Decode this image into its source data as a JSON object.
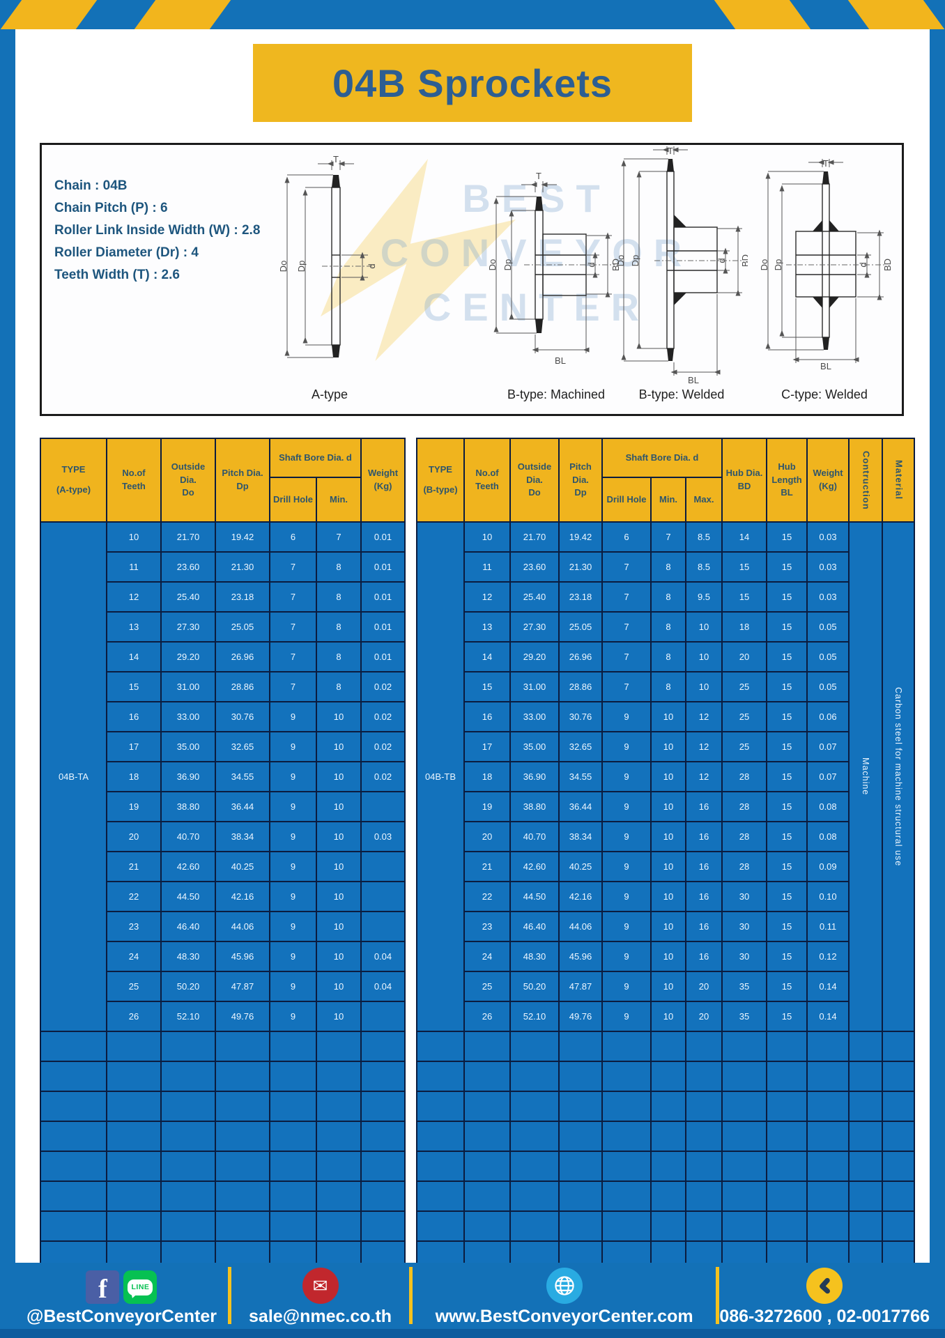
{
  "page": {
    "title": "04B Sprockets"
  },
  "specs": {
    "lines": [
      "Chain : 04B",
      "Chain Pitch (P) : 6",
      "Roller Link Inside Width (W) : 2.8",
      "Roller Diameter (Dr) : 4",
      "Teeth Width (T) : 2.6"
    ]
  },
  "watermark": {
    "lines": [
      "BEST",
      "CONVEYOR",
      "CENTER"
    ]
  },
  "diagram": {
    "types": [
      "A-type",
      "B-type: Machined",
      "B-type: Welded",
      "C-type: Welded"
    ],
    "dims": {
      "T": "T",
      "Do": "Do",
      "Dp": "Dp",
      "d": "d",
      "BD": "BD",
      "BL": "BL"
    }
  },
  "tables": {
    "left": {
      "type_header": "TYPE\n(A-type)",
      "headers": {
        "teeth": "No.of\nTeeth",
        "outside": "Outside\nDia.\nDo",
        "pitch": "Pitch Dia.\nDp",
        "shaft_bore": "Shaft Bore Dia. d",
        "drill": "Drill Hole",
        "min": "Min.",
        "weight": "Weight\n(Kg)"
      },
      "series_label": "04B-TA",
      "rows": [
        [
          "10",
          "21.70",
          "19.42",
          "6",
          "7",
          "0.01"
        ],
        [
          "11",
          "23.60",
          "21.30",
          "7",
          "8",
          "0.01"
        ],
        [
          "12",
          "25.40",
          "23.18",
          "7",
          "8",
          "0.01"
        ],
        [
          "13",
          "27.30",
          "25.05",
          "7",
          "8",
          "0.01"
        ],
        [
          "14",
          "29.20",
          "26.96",
          "7",
          "8",
          "0.01"
        ],
        [
          "15",
          "31.00",
          "28.86",
          "7",
          "8",
          "0.02"
        ],
        [
          "16",
          "33.00",
          "30.76",
          "9",
          "10",
          "0.02"
        ],
        [
          "17",
          "35.00",
          "32.65",
          "9",
          "10",
          "0.02"
        ],
        [
          "18",
          "36.90",
          "34.55",
          "9",
          "10",
          "0.02"
        ],
        [
          "19",
          "38.80",
          "36.44",
          "9",
          "10",
          ""
        ],
        [
          "20",
          "40.70",
          "38.34",
          "9",
          "10",
          "0.03"
        ],
        [
          "21",
          "42.60",
          "40.25",
          "9",
          "10",
          ""
        ],
        [
          "22",
          "44.50",
          "42.16",
          "9",
          "10",
          ""
        ],
        [
          "23",
          "46.40",
          "44.06",
          "9",
          "10",
          ""
        ],
        [
          "24",
          "48.30",
          "45.96",
          "9",
          "10",
          "0.04"
        ],
        [
          "25",
          "50.20",
          "47.87",
          "9",
          "10",
          "0.04"
        ],
        [
          "26",
          "52.10",
          "49.76",
          "9",
          "10",
          ""
        ]
      ],
      "empty_row_count": 8
    },
    "right": {
      "type_header": "TYPE\n(B-type)",
      "headers": {
        "teeth": "No.of\nTeeth",
        "outside": "Outside\nDia.\nDo",
        "pitch": "Pitch Dia.\nDp",
        "shaft_bore": "Shaft Bore Dia. d",
        "drill": "Drill Hole",
        "min": "Min.",
        "max": "Max.",
        "hub_dia": "Hub Dia.\nBD",
        "hub_length": "Hub\nLength\nBL",
        "weight": "Weight\n(Kg)",
        "construction": "Contruction",
        "material": "Material"
      },
      "series_label": "04B-TB",
      "construction_value": "Machine",
      "material_value": "Carbon steel for machine structural use",
      "rows": [
        [
          "10",
          "21.70",
          "19.42",
          "6",
          "7",
          "8.5",
          "14",
          "15",
          "0.03"
        ],
        [
          "11",
          "23.60",
          "21.30",
          "7",
          "8",
          "8.5",
          "15",
          "15",
          "0.03"
        ],
        [
          "12",
          "25.40",
          "23.18",
          "7",
          "8",
          "9.5",
          "15",
          "15",
          "0.03"
        ],
        [
          "13",
          "27.30",
          "25.05",
          "7",
          "8",
          "10",
          "18",
          "15",
          "0.05"
        ],
        [
          "14",
          "29.20",
          "26.96",
          "7",
          "8",
          "10",
          "20",
          "15",
          "0.05"
        ],
        [
          "15",
          "31.00",
          "28.86",
          "7",
          "8",
          "10",
          "25",
          "15",
          "0.05"
        ],
        [
          "16",
          "33.00",
          "30.76",
          "9",
          "10",
          "12",
          "25",
          "15",
          "0.06"
        ],
        [
          "17",
          "35.00",
          "32.65",
          "9",
          "10",
          "12",
          "25",
          "15",
          "0.07"
        ],
        [
          "18",
          "36.90",
          "34.55",
          "9",
          "10",
          "12",
          "28",
          "15",
          "0.07"
        ],
        [
          "19",
          "38.80",
          "36.44",
          "9",
          "10",
          "16",
          "28",
          "15",
          "0.08"
        ],
        [
          "20",
          "40.70",
          "38.34",
          "9",
          "10",
          "16",
          "28",
          "15",
          "0.08"
        ],
        [
          "21",
          "42.60",
          "40.25",
          "9",
          "10",
          "16",
          "28",
          "15",
          "0.09"
        ],
        [
          "22",
          "44.50",
          "42.16",
          "9",
          "10",
          "16",
          "30",
          "15",
          "0.10"
        ],
        [
          "23",
          "46.40",
          "44.06",
          "9",
          "10",
          "16",
          "30",
          "15",
          "0.11"
        ],
        [
          "24",
          "48.30",
          "45.96",
          "9",
          "10",
          "16",
          "30",
          "15",
          "0.12"
        ],
        [
          "25",
          "50.20",
          "47.87",
          "9",
          "10",
          "20",
          "35",
          "15",
          "0.14"
        ],
        [
          "26",
          "52.10",
          "49.76",
          "9",
          "10",
          "20",
          "35",
          "15",
          "0.14"
        ]
      ],
      "empty_row_count": 8
    }
  },
  "footer": {
    "facebook_letter": "f",
    "line_badge": "LINE",
    "items": [
      {
        "text": "@BestConveyorCenter"
      },
      {
        "text": "sale@nmec.co.th"
      },
      {
        "text": "www.BestConveyorCenter.com"
      },
      {
        "text": "086-3272600 , 02-0017766"
      }
    ]
  },
  "colors": {
    "frame_blue": "#1371B7",
    "stripe_yellow": "#F2B51D",
    "title_yellow": "#EFB71F",
    "title_text": "#2D5E92",
    "specs_text": "#1E567E",
    "header_yellow": "#F0B41E",
    "header_text": "#2E556C",
    "cell_blue": "#1372BC",
    "grid_navy": "#0B1C3F",
    "cell_text": "#ECF6FF",
    "footer_dark_strip": "#0D5C9E",
    "facebook_blue": "#4A5FA5",
    "line_green": "#06C152",
    "email_red": "#C1272D",
    "globe_blue": "#29ABE2",
    "phone_yellow": "#F5C21E"
  }
}
